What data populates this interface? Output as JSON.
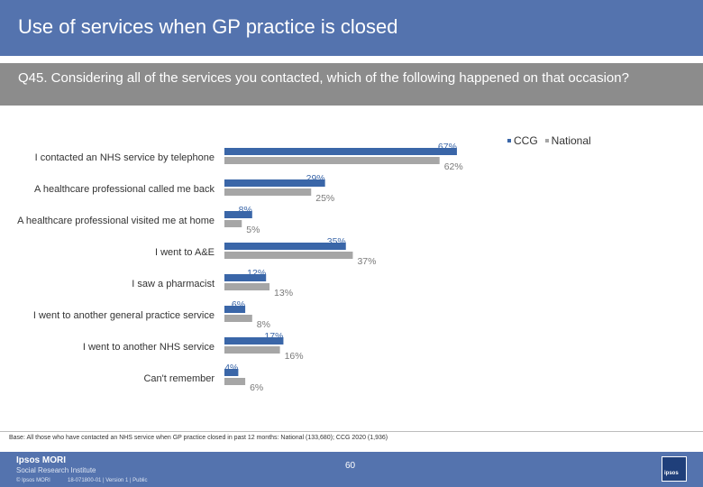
{
  "header": {
    "title": "Use of services when GP practice is closed"
  },
  "question": {
    "text": "Q45. Considering all of the services you contacted, which of the following happened on that occasion?"
  },
  "legend": {
    "ccg_label": "CCG",
    "national_label": "National"
  },
  "colors": {
    "ccg": "#3a66a8",
    "national": "#a6a6a6",
    "header": "#5473ae"
  },
  "chart_data": {
    "type": "bar",
    "orientation": "horizontal",
    "categories": [
      "I contacted an NHS service by telephone",
      "A healthcare professional called me back",
      "A healthcare professional visited me at home",
      "I went to A&E",
      "I saw a pharmacist",
      "I went to another general practice service",
      "I went to another NHS service",
      "Can't remember"
    ],
    "series": [
      {
        "name": "CCG",
        "values": [
          67,
          29,
          8,
          35,
          12,
          6,
          17,
          4
        ],
        "labels": [
          "67%",
          "29%",
          "8%",
          "35%",
          "12%",
          "6%",
          "17%",
          "4%"
        ]
      },
      {
        "name": "National",
        "values": [
          62,
          25,
          5,
          37,
          13,
          8,
          16,
          6
        ],
        "labels": [
          "62%",
          "25%",
          "5%",
          "37%",
          "13%",
          "8%",
          "16%",
          "6%"
        ]
      }
    ],
    "xlim": [
      0,
      100
    ],
    "legend_position": "top-right"
  },
  "footer": {
    "base_note": "Base: All those who have contacted an NHS service when GP practice closed in past 12 months: National (133,680); CCG 2020 (1,936)",
    "logo_main": "Ipsos MORI",
    "logo_sub": "Social Research Institute",
    "copyright": "© Ipsos MORI",
    "job_ref": "18-071800-01 | Version 1 | Public",
    "page_number": "60",
    "badge_text": "ipsos"
  }
}
